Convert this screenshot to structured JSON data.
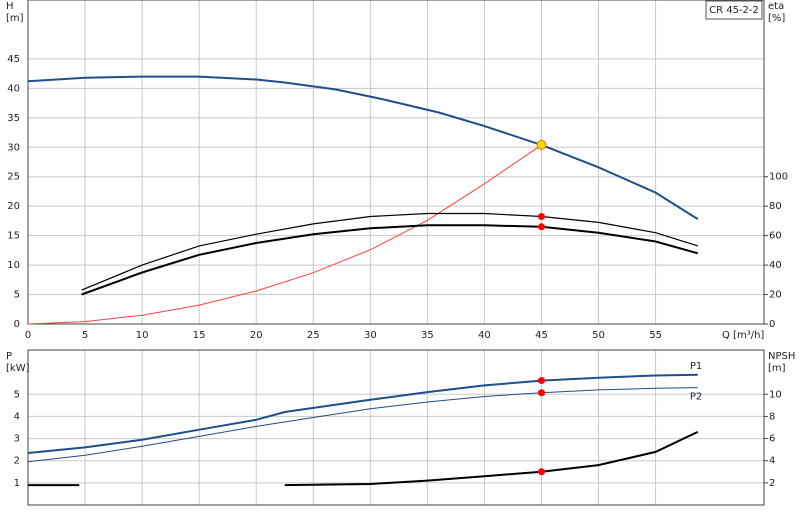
{
  "chart_data": [
    {
      "type": "line",
      "title": "CR 45-2-2",
      "x_label": "Q [m³/h]",
      "y_label": [
        "H",
        "[m]"
      ],
      "y2_label": [
        "eta",
        "[%]"
      ],
      "xlim": [
        0,
        64.5
      ],
      "xticks": [
        0,
        5,
        10,
        15,
        20,
        25,
        30,
        35,
        40,
        45,
        50,
        55
      ],
      "ylim": [
        0,
        55
      ],
      "yticks": [
        0,
        5,
        10,
        15,
        20,
        25,
        30,
        35,
        40,
        45
      ],
      "y2lim": [
        0,
        220
      ],
      "y2ticks": [
        0,
        20,
        40,
        60,
        80,
        100
      ],
      "grid": true,
      "series": [
        {
          "color": "#1f4e8c",
          "width": 2,
          "x": [
            0,
            5,
            10,
            15,
            20,
            22.5,
            27,
            31,
            36,
            40,
            45,
            50,
            55,
            58.7
          ],
          "values": [
            41.2,
            41.8,
            42,
            42,
            41.5,
            41,
            39.8,
            38.2,
            35.9,
            33.6,
            30.4,
            26.6,
            22.3,
            17.8
          ]
        },
        {
          "color": "#ff4040",
          "width": 1,
          "x": [
            0,
            5,
            10,
            15,
            20,
            25,
            30,
            35,
            40,
            45
          ],
          "values": [
            0,
            0.4,
            1.5,
            3.2,
            5.6,
            8.7,
            12.6,
            17.6,
            23.8,
            30.4
          ]
        },
        {
          "color": "#000000",
          "width": 1.2,
          "axis": "y2",
          "x": [
            4.7,
            10,
            15,
            20,
            25,
            30,
            35,
            40,
            45,
            50,
            55,
            58.7
          ],
          "values": [
            23,
            40,
            53,
            61,
            68,
            73,
            75,
            75,
            73,
            69,
            62,
            53
          ]
        },
        {
          "color": "#000000",
          "width": 2,
          "axis": "y2",
          "x": [
            4.7,
            10,
            15,
            20,
            25,
            30,
            35,
            40,
            45,
            50,
            55,
            58.7
          ],
          "values": [
            20,
            35,
            47,
            55,
            61,
            65,
            67,
            67,
            66,
            62,
            56,
            48
          ]
        }
      ],
      "points": [
        {
          "x": 45,
          "y": 30.4,
          "color": "#ffd700"
        },
        {
          "x": 45,
          "y": 73,
          "axis": "y2",
          "color": "#ff0000"
        },
        {
          "x": 45,
          "y": 66,
          "axis": "y2",
          "color": "#ff0000"
        }
      ]
    },
    {
      "type": "line",
      "y_label": [
        "P",
        "[kW]"
      ],
      "y2_label": [
        "NPSH",
        "[m]"
      ],
      "xlim": [
        0,
        64.5
      ],
      "xticks": [
        0,
        5,
        10,
        15,
        20,
        25,
        30,
        35,
        40,
        45,
        50,
        55
      ],
      "ylim": [
        0,
        7
      ],
      "yticks": [
        1,
        2,
        3,
        4,
        5
      ],
      "y2lim": [
        0,
        14
      ],
      "y2ticks": [
        2,
        4,
        6,
        8,
        10
      ],
      "grid": true,
      "series": [
        {
          "name": "P1",
          "color": "#1f4e8c",
          "width": 2,
          "x": [
            0,
            5,
            10,
            15,
            20,
            22.5,
            30,
            35,
            40,
            45,
            50,
            55,
            58.7
          ],
          "values": [
            2.35,
            2.6,
            2.95,
            3.4,
            3.85,
            4.2,
            4.75,
            5.1,
            5.4,
            5.62,
            5.75,
            5.85,
            5.88
          ]
        },
        {
          "name": "P2",
          "color": "#1f4e8c",
          "width": 1,
          "x": [
            0,
            5,
            10,
            15,
            20,
            25,
            30,
            35,
            40,
            45,
            50,
            55,
            58.7
          ],
          "values": [
            1.95,
            2.25,
            2.65,
            3.1,
            3.55,
            3.95,
            4.35,
            4.65,
            4.9,
            5.07,
            5.2,
            5.27,
            5.3
          ]
        },
        {
          "color": "#000000",
          "width": 2,
          "axis": "y2",
          "x": [
            0,
            4.5,
            13,
            22.5,
            30,
            35,
            40,
            45,
            50,
            55,
            58.7
          ],
          "values": [
            1.8,
            1.8,
            null,
            1.8,
            1.9,
            2.2,
            2.6,
            3.0,
            3.6,
            4.8,
            6.6
          ]
        }
      ],
      "points": [
        {
          "x": 45,
          "y": 5.62,
          "color": "#ff0000"
        },
        {
          "x": 45,
          "y": 5.07,
          "color": "#ff0000"
        },
        {
          "x": 45,
          "y": 3.0,
          "axis": "y2",
          "color": "#ff0000"
        }
      ]
    }
  ]
}
